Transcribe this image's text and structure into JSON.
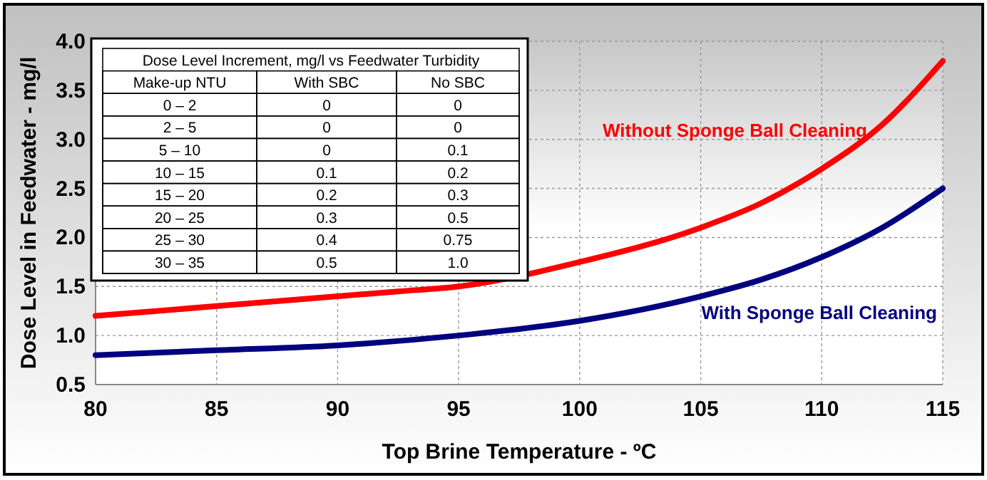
{
  "chart_data": {
    "type": "line",
    "xlabel": "Top Brine Temperature - ºC",
    "ylabel": "Dose Level in Feedwater - mg/l",
    "xlim": [
      80,
      115
    ],
    "xticks": [
      80,
      85,
      90,
      95,
      100,
      105,
      110,
      115
    ],
    "ylim": [
      0.5,
      4.0
    ],
    "yticks": [
      {
        "value": 0.5,
        "label": "0.5"
      },
      {
        "value": 1,
        "label": "1.0"
      },
      {
        "value": 1.5,
        "label": "1.5"
      },
      {
        "value": 2,
        "label": "2.0"
      },
      {
        "value": 2.5,
        "label": "2.5"
      },
      {
        "value": 3,
        "label": "3.0"
      },
      {
        "value": 3.5,
        "label": "3.5"
      },
      {
        "value": 4,
        "label": "4.0"
      }
    ],
    "grid": true,
    "series": [
      {
        "name": "Without Sponge Ball Cleaning",
        "color": "#ff0000",
        "x": [
          80,
          85,
          90,
          92.5,
          95,
          100,
          105,
          107.5,
          110,
          112.5,
          115
        ],
        "values": [
          1.2,
          1.3,
          1.4,
          1.45,
          1.5,
          1.75,
          2.1,
          2.35,
          2.7,
          3.15,
          3.8
        ]
      },
      {
        "name": "With Sponge Ball Cleaning",
        "color": "#000080",
        "x": [
          80,
          85,
          90,
          95,
          100,
          105,
          107.5,
          110,
          112.5,
          115
        ],
        "values": [
          0.8,
          0.85,
          0.9,
          1.0,
          1.15,
          1.4,
          1.57,
          1.8,
          2.1,
          2.5
        ]
      }
    ],
    "annotations": [
      "Dose Level Increment, mg/l vs Feedwater Turbidity",
      "Make-up NTU",
      "With SBC",
      "No SBC",
      "0 – 2",
      "0",
      "0",
      "2 – 5",
      "0",
      "0",
      "5 – 10",
      "0",
      "0.1",
      "10 – 15",
      "0.1",
      "0.2",
      "15 – 20",
      "0.2",
      "0.3",
      "20 – 25",
      "0.3",
      "0.5",
      "25 – 30",
      "0.4",
      "0.75",
      "30 – 35",
      "0.5",
      "1.0"
    ]
  }
}
